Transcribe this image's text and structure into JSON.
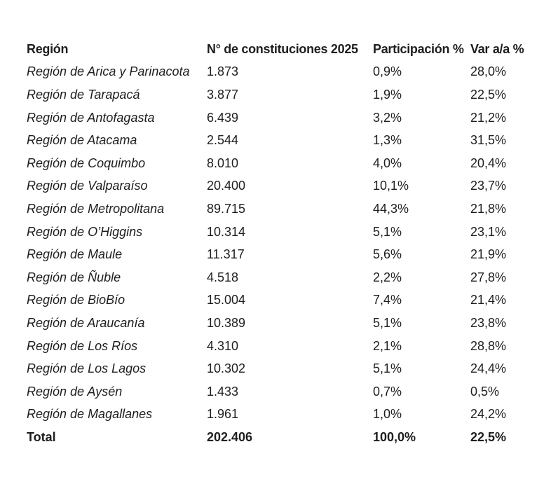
{
  "table": {
    "headers": [
      "Región",
      "N° de constituciones 2025",
      "Participación %",
      "Var a/a %"
    ],
    "rows": [
      [
        "Región de Arica y Parinacota",
        "1.873",
        "0,9%",
        "28,0%"
      ],
      [
        "Región de Tarapacá",
        "3.877",
        "1,9%",
        "22,5%"
      ],
      [
        "Región de Antofagasta",
        "6.439",
        "3,2%",
        "21,2%"
      ],
      [
        "Región de Atacama",
        "2.544",
        "1,3%",
        "31,5%"
      ],
      [
        "Región de Coquimbo",
        "8.010",
        "4,0%",
        "20,4%"
      ],
      [
        "Región de Valparaíso",
        "20.400",
        "10,1%",
        "23,7%"
      ],
      [
        "Región de Metropolitana",
        "89.715",
        "44,3%",
        "21,8%"
      ],
      [
        "Región de O’Higgins",
        "10.314",
        "5,1%",
        "23,1%"
      ],
      [
        "Región de Maule",
        "11.317",
        "5,6%",
        "21,9%"
      ],
      [
        "Región de Ñuble",
        "4.518",
        "2,2%",
        "27,8%"
      ],
      [
        "Región de BioBío",
        "15.004",
        "7,4%",
        "21,4%"
      ],
      [
        "Región de Araucanía",
        "10.389",
        "5,1%",
        "23,8%"
      ],
      [
        "Región de Los Ríos",
        "4.310",
        "2,1%",
        "28,8%"
      ],
      [
        "Región de Los Lagos",
        "10.302",
        "5,1%",
        "24,4%"
      ],
      [
        "Región de Aysén",
        "1.433",
        "0,7%",
        "0,5%"
      ],
      [
        "Región de Magallanes",
        "1.961",
        "1,0%",
        "24,2%"
      ]
    ],
    "total": [
      "Total",
      "202.406",
      "100,0%",
      "22,5%"
    ]
  }
}
